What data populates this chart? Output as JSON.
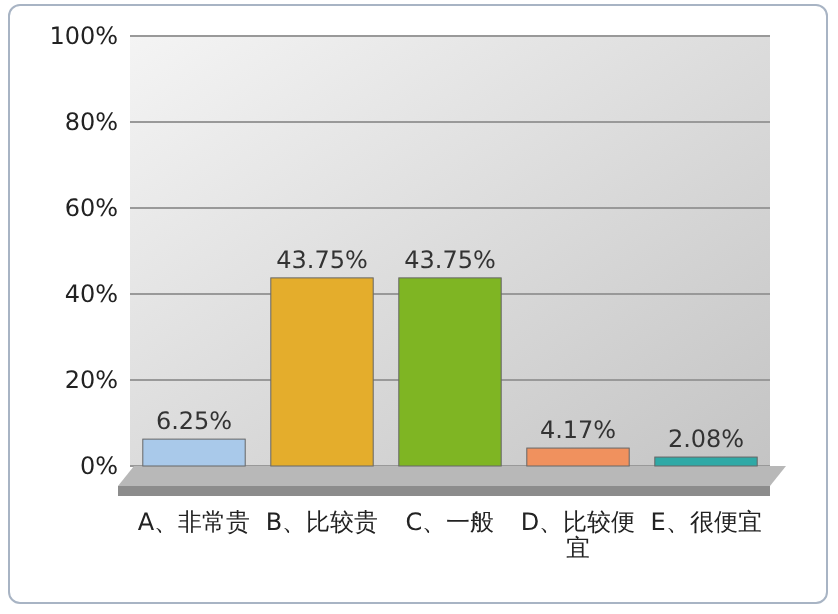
{
  "chart_data": {
    "type": "bar",
    "categories": [
      "A、非常贵",
      "B、比较贵",
      "C、一般",
      "D、比较便宜",
      "E、很便宜"
    ],
    "values": [
      6.25,
      43.75,
      43.75,
      4.17,
      2.08
    ],
    "colors": [
      "#a9c9ea",
      "#e4ad2c",
      "#7fb523",
      "#f0915e",
      "#2fa9a6"
    ],
    "value_labels": [
      "6.25%",
      "43.75%",
      "43.75%",
      "4.17%",
      "2.08%"
    ],
    "ylim": [
      0,
      100
    ],
    "yticks": [
      {
        "value": 0,
        "label": "0%"
      },
      {
        "value": 20,
        "label": "20%"
      },
      {
        "value": 40,
        "label": "40%"
      },
      {
        "value": 60,
        "label": "60%"
      },
      {
        "value": 80,
        "label": "80%"
      },
      {
        "value": 100,
        "label": "100%"
      }
    ],
    "grid": "y"
  }
}
